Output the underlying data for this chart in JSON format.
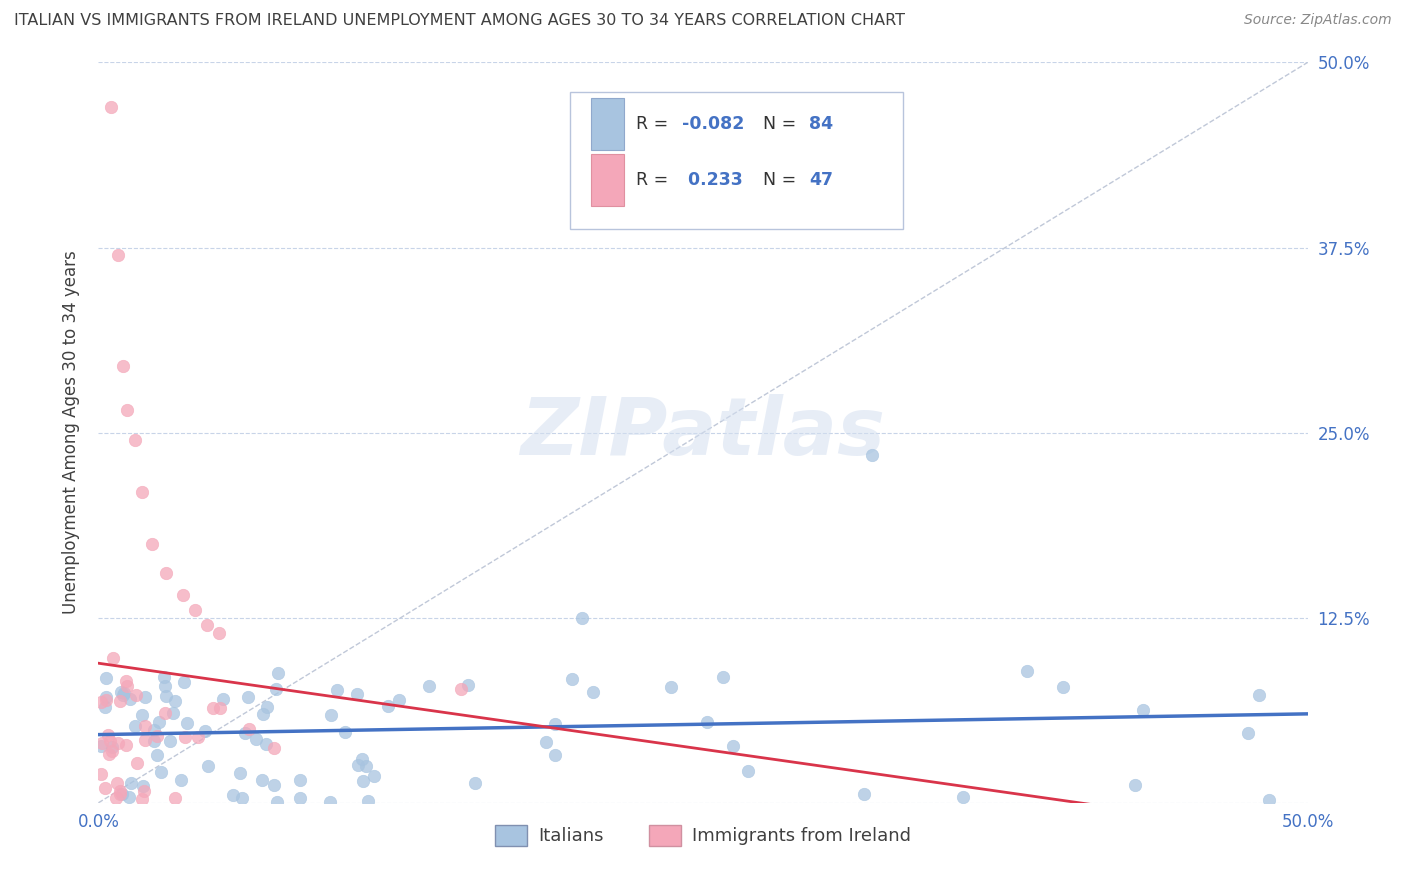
{
  "title": "ITALIAN VS IMMIGRANTS FROM IRELAND UNEMPLOYMENT AMONG AGES 30 TO 34 YEARS CORRELATION CHART",
  "source": "Source: ZipAtlas.com",
  "ylabel": "Unemployment Among Ages 30 to 34 years",
  "xlim": [
    0.0,
    0.5
  ],
  "ylim": [
    0.0,
    0.5
  ],
  "yticks": [
    0.0,
    0.125,
    0.25,
    0.375,
    0.5
  ],
  "ytick_labels_right": [
    "",
    "12.5%",
    "25.0%",
    "37.5%",
    "50.0%"
  ],
  "xticks": [
    0.0,
    0.1,
    0.2,
    0.3,
    0.4,
    0.5
  ],
  "xtick_labels": [
    "0.0%",
    "",
    "",
    "",
    "",
    "50.0%"
  ],
  "italians_color": "#a8c4e0",
  "ireland_color": "#f4a7b9",
  "italians_line_color": "#4472c4",
  "ireland_line_color": "#d9344a",
  "R_italians": -0.082,
  "N_italians": 84,
  "R_ireland": 0.233,
  "N_ireland": 47,
  "legend_italians": "Italians",
  "legend_ireland": "Immigrants from Ireland",
  "background_color": "#ffffff",
  "grid_color": "#c8d4e8",
  "title_color": "#404040",
  "axis_color": "#4472c4",
  "legend_box_color": "#f0f0f8",
  "legend_border_color": "#b0b8d0"
}
